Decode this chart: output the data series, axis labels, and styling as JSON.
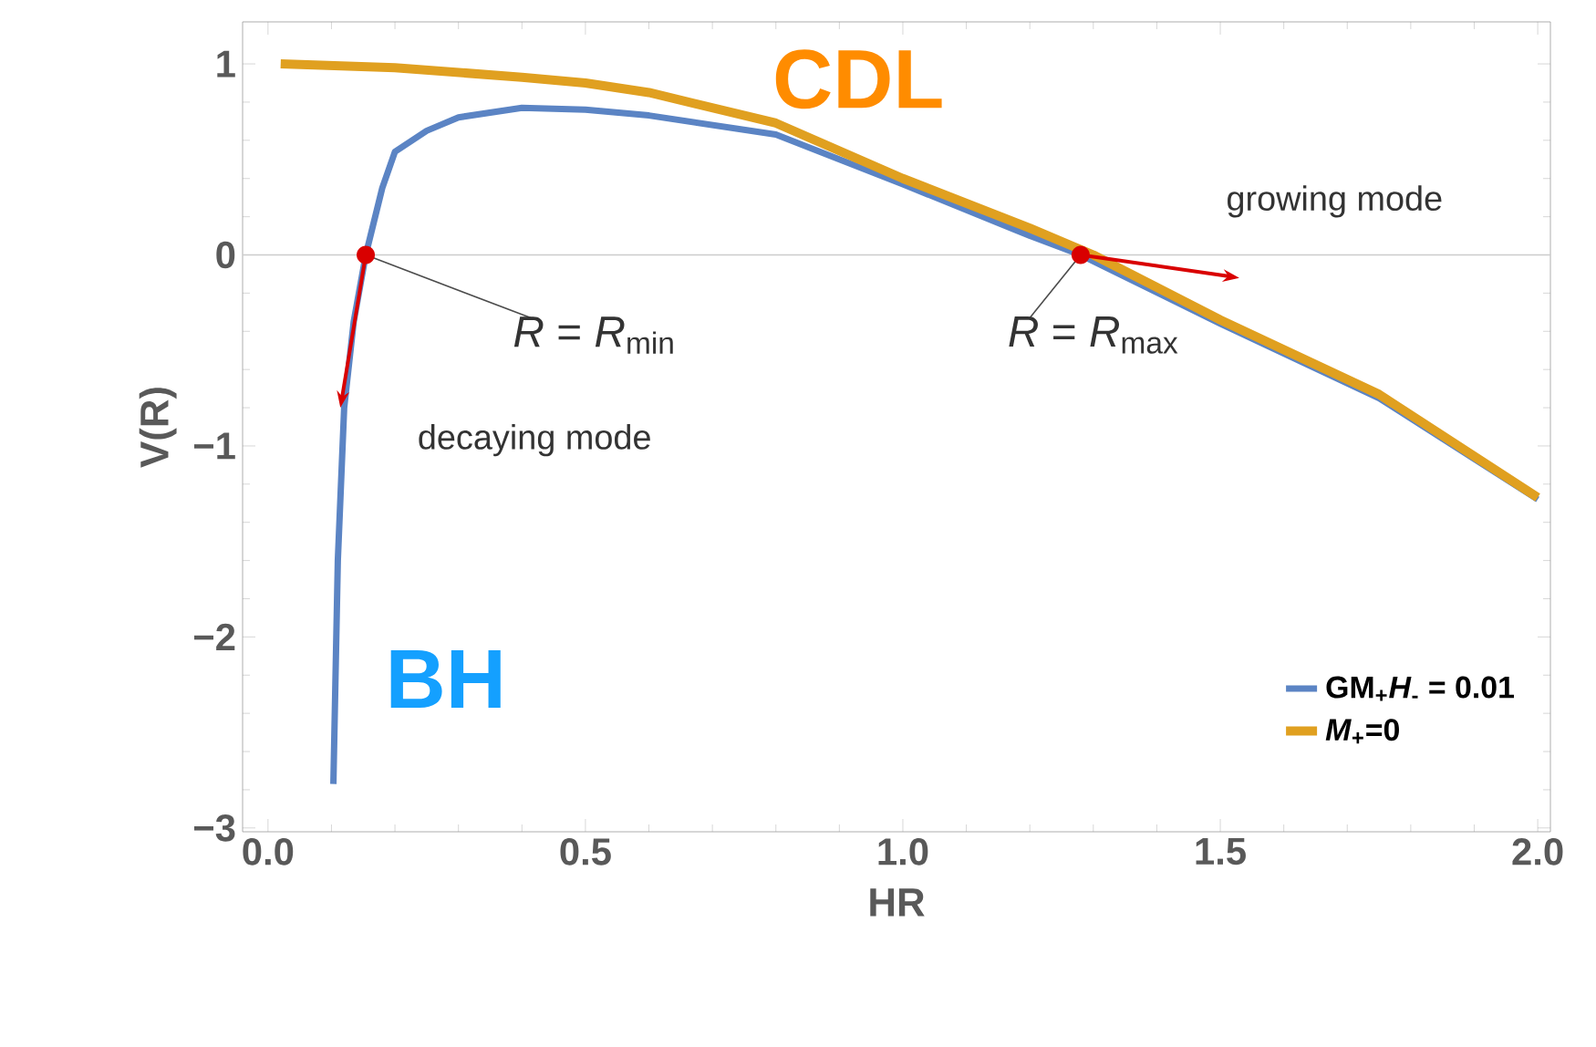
{
  "chart_data": {
    "type": "line",
    "xlabel": "HR",
    "ylabel": "V(R)",
    "xlim": [
      -0.04,
      2.02
    ],
    "ylim": [
      -3.02,
      1.22
    ],
    "xticks": [
      {
        "value": 0,
        "label": "0.0"
      },
      {
        "value": 0.5,
        "label": "0.5"
      },
      {
        "value": 1,
        "label": "1.0"
      },
      {
        "value": 1.5,
        "label": "1.5"
      },
      {
        "value": 2,
        "label": "2.0"
      }
    ],
    "yticks": [
      {
        "value": -3,
        "label": "−3"
      },
      {
        "value": -2,
        "label": "−2"
      },
      {
        "value": -1,
        "label": "−1"
      },
      0,
      1
    ],
    "series": [
      {
        "name": "GM$_{+}$*H*$_{-}$ = 0.01",
        "color": "#5b84c4",
        "x": [
          0.103,
          0.11,
          0.12,
          0.135,
          0.154,
          0.18,
          0.2,
          0.25,
          0.3,
          0.4,
          0.5,
          0.6,
          0.8,
          1.0,
          1.2,
          1.28,
          1.5,
          1.75,
          2.0
        ],
        "values": [
          -2.77,
          -1.6,
          -0.8,
          -0.35,
          0.0,
          0.35,
          0.54,
          0.65,
          0.72,
          0.77,
          0.76,
          0.73,
          0.63,
          0.37,
          0.1,
          0.0,
          -0.36,
          -0.75,
          -1.28
        ]
      },
      {
        "name": "*M*$_{+}$=0",
        "color": "#e0a020",
        "x": [
          0.02,
          0.2,
          0.4,
          0.5,
          0.6,
          0.8,
          1.0,
          1.2,
          1.3,
          1.5,
          1.75,
          2.0
        ],
        "values": [
          1.0,
          0.98,
          0.93,
          0.9,
          0.85,
          0.69,
          0.4,
          0.14,
          0.0,
          -0.34,
          -0.73,
          -1.27
        ]
      }
    ],
    "ref_lines": [
      {
        "axis": "y",
        "value": 0,
        "color": "#cccccc"
      }
    ],
    "annotations": [
      "CDL",
      "BH",
      "growing mode",
      "decaying mode",
      {
        "text": "*R* = *R*$_{min}$",
        "x": 0.154,
        "y": 0
      },
      {
        "text": "*R* = *R*$_{max}$",
        "x": 1.28,
        "y": 0
      }
    ],
    "legend": "bottom right",
    "grid": false,
    "marker": "none",
    "line_style": "solid"
  }
}
